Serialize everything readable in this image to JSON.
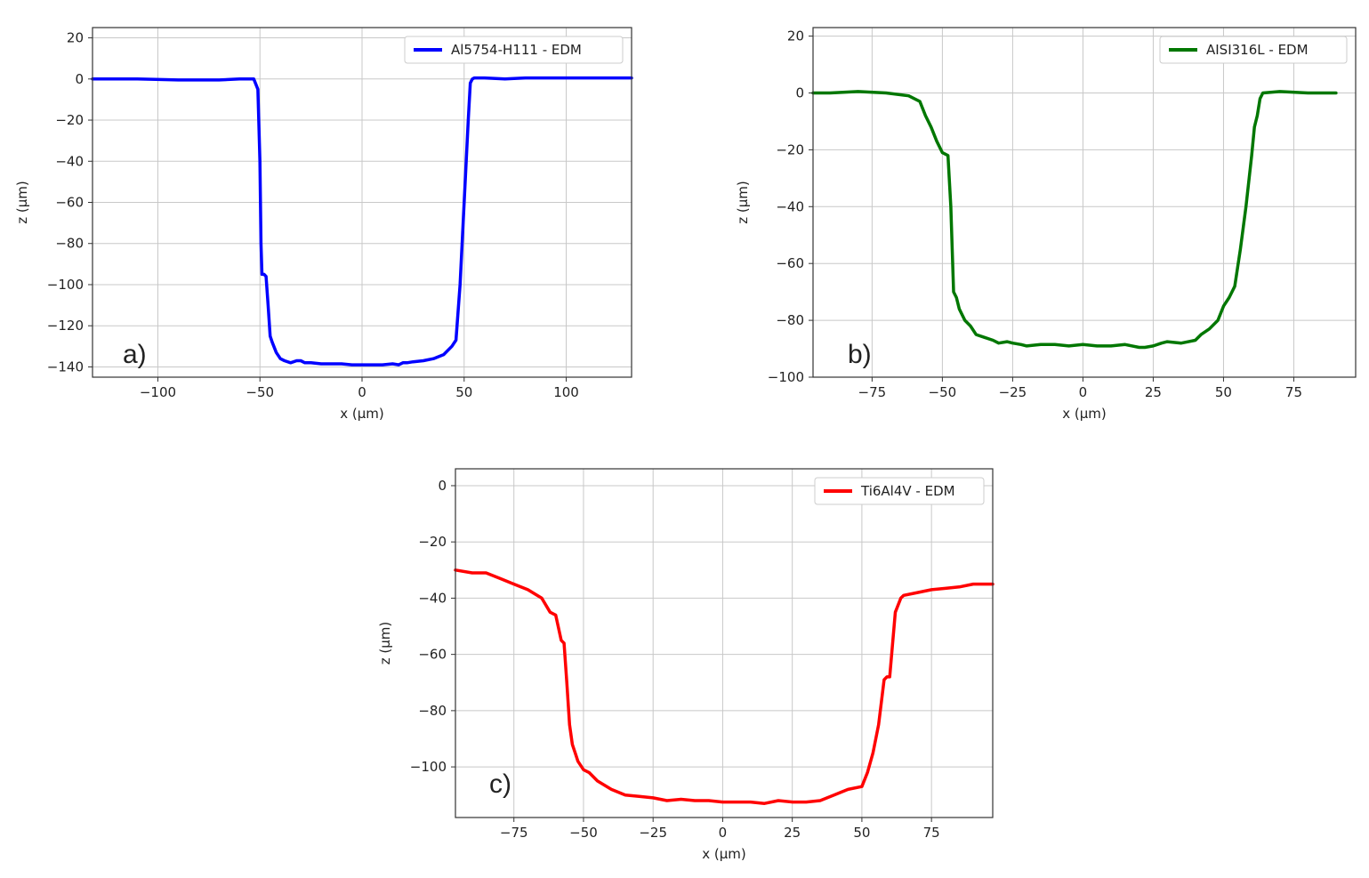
{
  "chart_data": [
    {
      "type": "line",
      "panel_label": "a)",
      "xlabel": "x (µm)",
      "ylabel": "z (µm)",
      "xlim": [
        -132,
        132
      ],
      "ylim": [
        -145,
        25
      ],
      "xticks": [
        -100,
        -50,
        0,
        50,
        100
      ],
      "yticks": [
        20,
        0,
        -20,
        -40,
        -60,
        -80,
        -100,
        -120,
        -140
      ],
      "grid": true,
      "legend_position": "top-right",
      "series": [
        {
          "name": "Al5754-H111 - EDM",
          "color": "#0000ff",
          "x": [
            -132,
            -110,
            -90,
            -70,
            -60,
            -53,
            -51,
            -50,
            -49.5,
            -49,
            -48,
            -47,
            -46,
            -45,
            -44,
            -42,
            -40,
            -38,
            -35,
            -32,
            -30,
            -28,
            -25,
            -20,
            -15,
            -10,
            -5,
            0,
            5,
            10,
            15,
            18,
            20,
            22,
            25,
            30,
            35,
            40,
            44,
            46,
            48,
            50,
            52,
            53,
            54,
            55,
            56,
            57,
            60,
            70,
            80,
            90,
            100,
            110,
            120,
            132
          ],
          "y": [
            0,
            0,
            -0.5,
            -0.5,
            0,
            0,
            -5,
            -40,
            -80,
            -95,
            -95,
            -96,
            -110,
            -125,
            -128,
            -133,
            -136,
            -137,
            -138,
            -137,
            -137,
            -138,
            -138,
            -138.5,
            -138.5,
            -138.5,
            -139,
            -139,
            -139,
            -139,
            -138.5,
            -139,
            -138,
            -138,
            -137.5,
            -137,
            -136,
            -134,
            -130,
            -127,
            -100,
            -60,
            -20,
            -2,
            0,
            0.5,
            0.5,
            0.5,
            0.5,
            0,
            0.5,
            0.5,
            0.5,
            0.5,
            0.5,
            0.5
          ]
        }
      ]
    },
    {
      "type": "line",
      "panel_label": "b)",
      "xlabel": "x (µm)",
      "ylabel": "z (µm)",
      "xlim": [
        -96,
        97
      ],
      "ylim": [
        -100,
        23
      ],
      "xticks": [
        -75,
        -50,
        -25,
        0,
        25,
        50,
        75
      ],
      "yticks": [
        20,
        0,
        -20,
        -40,
        -60,
        -80,
        -100
      ],
      "grid": true,
      "legend_position": "top-right",
      "series": [
        {
          "name": "AISI316L - EDM",
          "color": "#007700",
          "x": [
            -96,
            -90,
            -80,
            -70,
            -62,
            -58,
            -56,
            -54,
            -52,
            -50,
            -48,
            -47,
            -46,
            -45,
            -44,
            -42,
            -40,
            -38,
            -35,
            -32,
            -30,
            -27,
            -25,
            -22,
            -20,
            -15,
            -10,
            -5,
            0,
            5,
            10,
            15,
            20,
            22,
            25,
            28,
            30,
            35,
            40,
            42,
            45,
            48,
            50,
            52,
            54,
            56,
            58,
            60,
            61,
            62,
            63,
            64,
            70,
            80,
            90
          ],
          "y": [
            0,
            0,
            0.5,
            0,
            -1,
            -3,
            -8,
            -12,
            -17,
            -21,
            -22,
            -40,
            -70,
            -72,
            -76,
            -80,
            -82,
            -85,
            -86,
            -87,
            -88,
            -87.5,
            -88,
            -88.5,
            -89,
            -88.5,
            -88.5,
            -89,
            -88.5,
            -89,
            -89,
            -88.5,
            -89.5,
            -89.5,
            -89,
            -88,
            -87.5,
            -88,
            -87,
            -85,
            -83,
            -80,
            -75,
            -72,
            -68,
            -55,
            -40,
            -22,
            -12,
            -8,
            -2,
            0,
            0.5,
            0,
            0
          ]
        }
      ]
    },
    {
      "type": "line",
      "panel_label": "c)",
      "xlabel": "x (µm)",
      "ylabel": "z (µm)",
      "xlim": [
        -96,
        97
      ],
      "ylim": [
        -118,
        6
      ],
      "xticks": [
        -75,
        -50,
        -25,
        0,
        25,
        50,
        75
      ],
      "yticks": [
        0,
        -20,
        -40,
        -60,
        -80,
        -100
      ],
      "grid": true,
      "legend_position": "top-right",
      "series": [
        {
          "name": "Ti6Al4V - EDM",
          "color": "#ff0000",
          "x": [
            -96,
            -90,
            -85,
            -80,
            -75,
            -70,
            -65,
            -62,
            -60,
            -58,
            -57,
            -56,
            -55,
            -54,
            -53,
            -52,
            -50,
            -48,
            -45,
            -40,
            -35,
            -30,
            -25,
            -20,
            -15,
            -10,
            -5,
            0,
            5,
            10,
            15,
            20,
            25,
            30,
            35,
            40,
            45,
            50,
            52,
            54,
            56,
            58,
            59,
            60,
            62,
            64,
            65,
            70,
            75,
            80,
            85,
            90,
            97
          ],
          "y": [
            -30,
            -31,
            -31,
            -33,
            -35,
            -37,
            -40,
            -45,
            -46,
            -55,
            -56,
            -70,
            -85,
            -92,
            -95,
            -98,
            -101,
            -102,
            -105,
            -108,
            -110,
            -110.5,
            -111,
            -112,
            -111.5,
            -112,
            -112,
            -112.5,
            -112.5,
            -112.5,
            -113,
            -112,
            -112.5,
            -112.5,
            -112,
            -110,
            -108,
            -107,
            -102,
            -95,
            -85,
            -69,
            -68,
            -68,
            -45,
            -40,
            -39,
            -38,
            -37,
            -36.5,
            -36,
            -35,
            -35
          ]
        }
      ]
    }
  ]
}
